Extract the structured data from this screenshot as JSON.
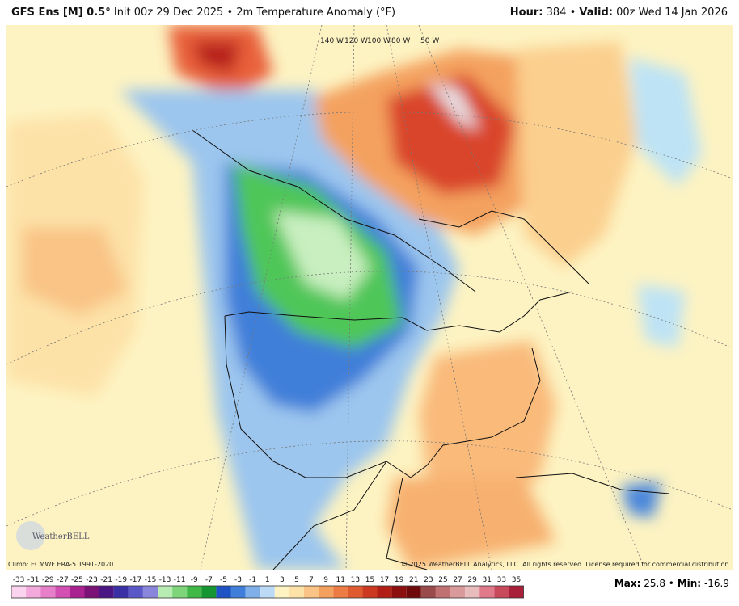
{
  "header": {
    "model": "GFS Ens [M] 0.5°",
    "init": "Init 00z 29 Dec 2025",
    "separator": "•",
    "product": "2m Temperature Anomaly (°F)",
    "hour_label": "Hour:",
    "hour": "384",
    "valid_label": "Valid:",
    "valid": "00z Wed 14 Jan 2026"
  },
  "map": {
    "lon_labels": [
      "140 W",
      "120 W",
      "100 W",
      "80 W",
      "50 W"
    ],
    "logo": "WeatherBELL"
  },
  "footer": {
    "climo": "Climo: ECMWF ERA-5 1991-2020",
    "copyright": "© 2025 WeatherBELL Analytics, LLC. All rights reserved. License required for commercial distribution.",
    "max_label": "Max:",
    "max": "25.8",
    "min_label": "Min:",
    "min": "-16.9"
  },
  "colorbar": {
    "labels": [
      -33,
      -31,
      -29,
      -27,
      -25,
      -23,
      -21,
      -19,
      -17,
      -15,
      -13,
      -11,
      -9,
      -7,
      -5,
      -3,
      -1,
      1,
      3,
      5,
      7,
      9,
      11,
      13,
      15,
      17,
      19,
      21,
      23,
      25,
      27,
      29,
      31,
      33,
      35
    ],
    "colors": [
      "#fbd3ee",
      "#f3a9dc",
      "#e77fc9",
      "#d24fb1",
      "#a9228f",
      "#7a1278",
      "#4b1683",
      "#3b2fa6",
      "#5b59c7",
      "#8a86dc",
      "#b9ecb2",
      "#7fd67a",
      "#3fb845",
      "#169630",
      "#1f52c4",
      "#3f7fd9",
      "#7fb0ea",
      "#bcd9f6",
      "#fdf3c2",
      "#fde2a8",
      "#f9c486",
      "#f4a15e",
      "#ec7c44",
      "#e05a30",
      "#cc3820",
      "#b01e16",
      "#8c0f10",
      "#6e0a0c",
      "#9a4a4a",
      "#c07070",
      "#d89a9a",
      "#e8bcbc",
      "#e07a8a",
      "#c8485c",
      "#a8203a"
    ]
  }
}
